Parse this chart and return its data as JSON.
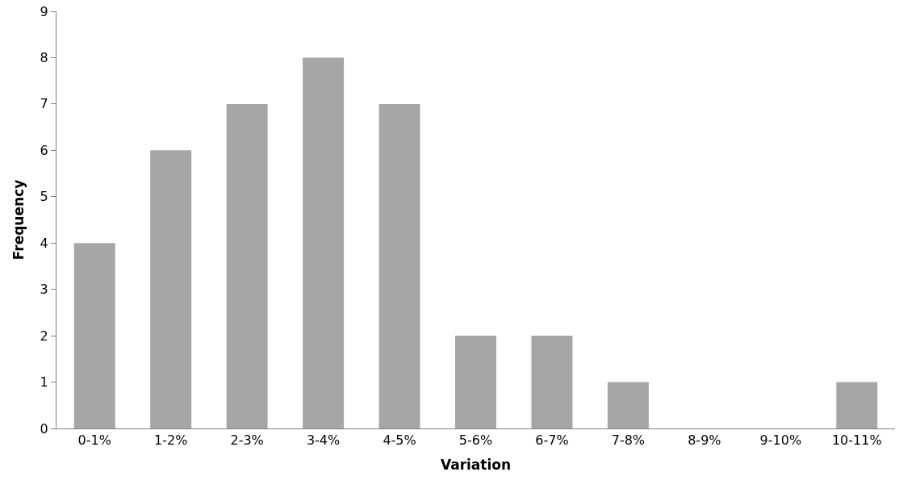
{
  "chart_data": {
    "type": "bar",
    "xlabel": "Variation",
    "ylabel": "Frequency",
    "categories": [
      "0-1%",
      "1-2%",
      "2-3%",
      "3-4%",
      "4-5%",
      "5-6%",
      "6-7%",
      "7-8%",
      "8-9%",
      "9-10%",
      "10-11%"
    ],
    "values": [
      4,
      6,
      7,
      8,
      7,
      2,
      2,
      1,
      0,
      0,
      1
    ],
    "color": "#a6a6a6",
    "ylim": [
      0,
      9
    ],
    "yticks": [
      0,
      1,
      2,
      3,
      4,
      5,
      6,
      7,
      8,
      9
    ]
  }
}
